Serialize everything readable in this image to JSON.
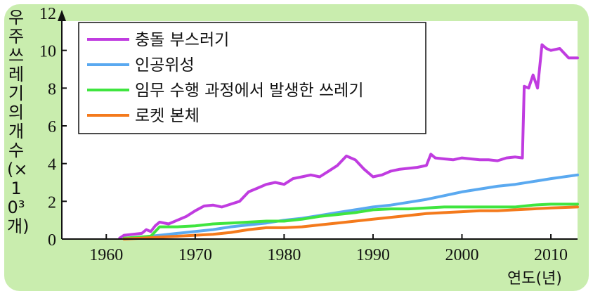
{
  "chart_data": {
    "type": "line",
    "ylabel": "우주 쓰레기의 개수(×10³개)",
    "xlabel": "연도(년)",
    "xlim": [
      1955,
      2013
    ],
    "ylim": [
      0,
      12
    ],
    "xticks": [
      1960,
      1970,
      1980,
      1990,
      2000,
      2010
    ],
    "yticks": [
      0,
      2,
      4,
      6,
      8,
      10,
      12
    ],
    "legend_position": "top-left",
    "grid": false,
    "series": [
      {
        "name": "충돌 부스러기",
        "color": "#c03ce0",
        "x": [
          1961.5,
          1962,
          1963,
          1964,
          1964.5,
          1965,
          1965.5,
          1966,
          1967,
          1968,
          1969,
          1970,
          1971,
          1972,
          1973,
          1974,
          1975,
          1976,
          1977,
          1978,
          1979,
          1980,
          1981,
          1982,
          1983,
          1984,
          1985,
          1986,
          1987,
          1988,
          1989,
          1990,
          1991,
          1992,
          1993,
          1994,
          1995,
          1996,
          1996.5,
          1997,
          1998,
          1999,
          2000,
          2001,
          2002,
          2003,
          2004,
          2005,
          2006,
          2006.8,
          2007,
          2007.5,
          2008,
          2008.5,
          2009,
          2009.5,
          2010,
          2011,
          2012,
          2013
        ],
        "values": [
          0.05,
          0.2,
          0.25,
          0.3,
          0.5,
          0.4,
          0.7,
          0.9,
          0.8,
          1.0,
          1.2,
          1.5,
          1.75,
          1.8,
          1.7,
          1.85,
          2.0,
          2.5,
          2.7,
          2.9,
          3.0,
          2.9,
          3.2,
          3.3,
          3.4,
          3.3,
          3.6,
          3.9,
          4.4,
          4.2,
          3.7,
          3.3,
          3.4,
          3.6,
          3.7,
          3.75,
          3.8,
          3.9,
          4.5,
          4.3,
          4.25,
          4.2,
          4.3,
          4.25,
          4.2,
          4.2,
          4.15,
          4.3,
          4.35,
          4.3,
          8.1,
          8.0,
          8.7,
          8.0,
          10.3,
          10.1,
          10.0,
          10.1,
          9.6,
          9.6
        ]
      },
      {
        "name": "인공위성",
        "color": "#5aa9f0",
        "x": [
          1964,
          1966,
          1968,
          1970,
          1972,
          1974,
          1976,
          1978,
          1980,
          1982,
          1984,
          1986,
          1988,
          1990,
          1992,
          1994,
          1996,
          1998,
          2000,
          2002,
          2004,
          2006,
          2008,
          2010,
          2013
        ],
        "values": [
          0.1,
          0.2,
          0.3,
          0.4,
          0.5,
          0.65,
          0.75,
          0.85,
          1.0,
          1.1,
          1.25,
          1.4,
          1.55,
          1.7,
          1.8,
          1.95,
          2.1,
          2.3,
          2.5,
          2.65,
          2.8,
          2.9,
          3.05,
          3.2,
          3.4
        ]
      },
      {
        "name": "임무 수행 과정에서 발생한 쓰레기",
        "color": "#3fe53f",
        "x": [
          1962,
          1965,
          1966,
          1968,
          1970,
          1972,
          1974,
          1976,
          1978,
          1980,
          1982,
          1984,
          1986,
          1988,
          1990,
          1992,
          1994,
          1996,
          1998,
          2000,
          2002,
          2004,
          2006,
          2008,
          2010,
          2013
        ],
        "values": [
          0.05,
          0.15,
          0.65,
          0.65,
          0.7,
          0.8,
          0.85,
          0.9,
          0.95,
          0.95,
          1.05,
          1.2,
          1.3,
          1.4,
          1.55,
          1.6,
          1.6,
          1.65,
          1.7,
          1.7,
          1.7,
          1.7,
          1.7,
          1.8,
          1.85,
          1.85
        ]
      },
      {
        "name": "로켓 본체",
        "color": "#f47a1c",
        "x": [
          1962,
          1964,
          1966,
          1968,
          1970,
          1972,
          1974,
          1976,
          1978,
          1980,
          1982,
          1984,
          1986,
          1988,
          1990,
          1992,
          1994,
          1996,
          1998,
          2000,
          2002,
          2004,
          2006,
          2008,
          2010,
          2013
        ],
        "values": [
          0.0,
          0.05,
          0.1,
          0.15,
          0.2,
          0.25,
          0.35,
          0.5,
          0.6,
          0.6,
          0.65,
          0.75,
          0.85,
          0.95,
          1.05,
          1.15,
          1.25,
          1.35,
          1.4,
          1.45,
          1.5,
          1.5,
          1.55,
          1.6,
          1.65,
          1.7
        ]
      }
    ]
  }
}
